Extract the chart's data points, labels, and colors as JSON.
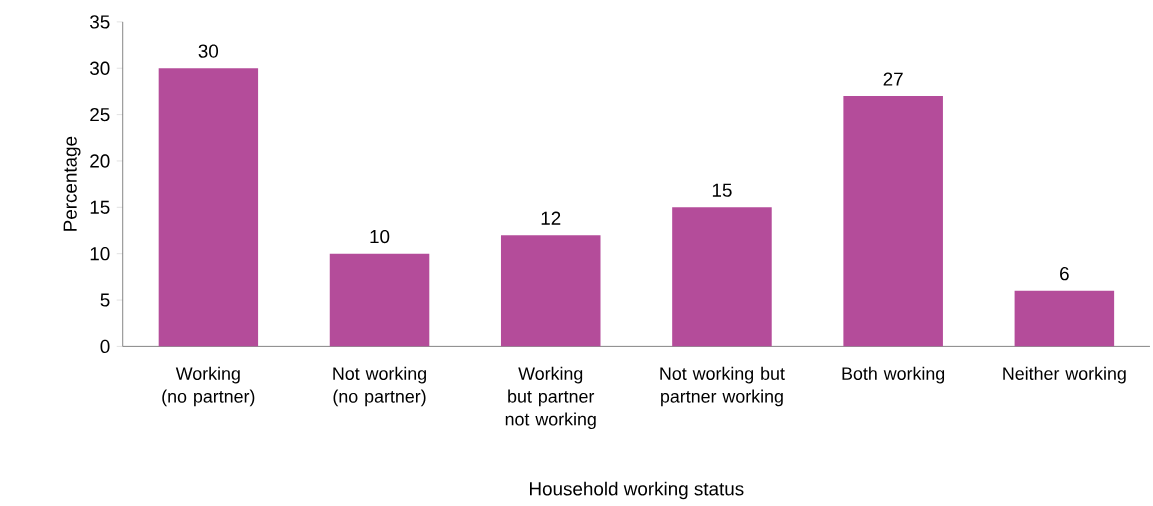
{
  "chart_data": {
    "type": "bar",
    "xlabel": "Household working status",
    "ylabel": "Percentage",
    "categories": [
      "Working (no partner)",
      "Not working (no partner)",
      "Working but partner not working",
      "Not working but partner working",
      "Both working",
      "Neither working"
    ],
    "values": [
      30,
      10,
      12,
      15,
      27,
      6
    ],
    "color": "#b44c9a",
    "ylim": [
      0,
      35
    ],
    "yticks": [
      0,
      5,
      10,
      15,
      20,
      25,
      30,
      35
    ],
    "data_labels": true
  }
}
